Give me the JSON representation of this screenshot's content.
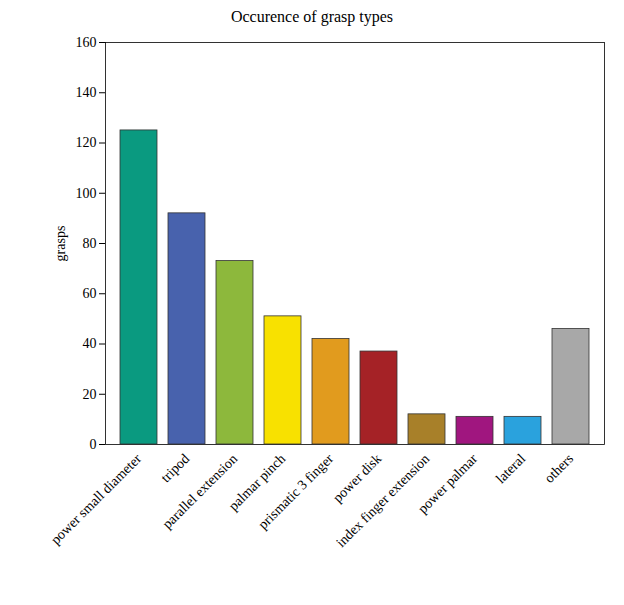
{
  "chart_data": {
    "type": "bar",
    "title": "Occurence of grasp types",
    "ylabel": "grasps",
    "categories": [
      "power small diameter",
      "tripod",
      "parallel extension",
      "palmar pinch",
      "prismatic 3 finger",
      "power disk",
      "index finger extension",
      "power palmar",
      "lateral",
      "others"
    ],
    "values": [
      125,
      92,
      73,
      51,
      42,
      37,
      12,
      11,
      11,
      46
    ],
    "colors": [
      "#0a9a80",
      "#4862ad",
      "#8db83c",
      "#f8e100",
      "#e19b1e",
      "#a52226",
      "#a88029",
      "#a0167f",
      "#2aa2dd",
      "#a8a8a8"
    ],
    "ylim": [
      0,
      160
    ],
    "yticks": [
      0,
      20,
      40,
      60,
      80,
      100,
      120,
      140,
      160
    ],
    "grid": false
  }
}
